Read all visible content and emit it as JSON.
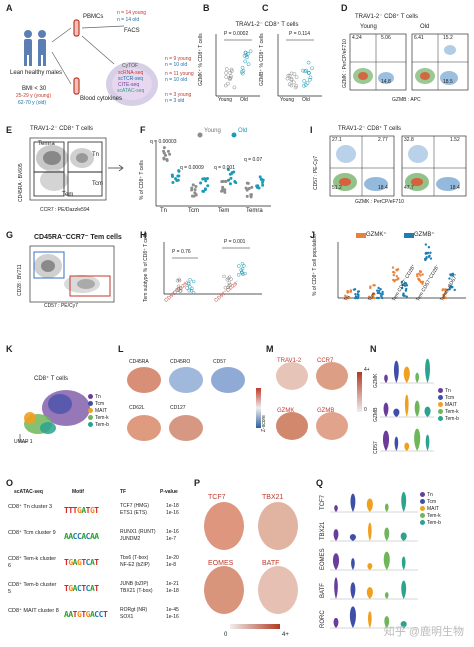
{
  "panels": {
    "A": {
      "letter": "A",
      "cohort_label": "Lean healthy males",
      "bmi": "BMI < 30",
      "age_young": "25-29 y (young)",
      "age_old": "62-70 y (old)",
      "pbmcs": "PBMCs",
      "pbmc_n_young": "n = 14 young",
      "pbmc_n_old": "n = 14 old",
      "facs": "FACS",
      "blood_cytokines": "Blood cytokines",
      "assays": [
        "CyTOF",
        "scRNA-seq",
        "scTCR-seq",
        "CITE-seq",
        "scATAC-seq"
      ],
      "right_counts": [
        "n = 9 young",
        "n = 10 old",
        "n = 11 young",
        "n = 10 old",
        "n = 3 young",
        "n = 3 old"
      ]
    },
    "B": {
      "letter": "B",
      "title": "TRAV1-2⁻ CD8⁺ T cells",
      "pval": "P = 0.0002",
      "ylabel": "GZMK⁺ % CD8⁺ T cells",
      "groups": [
        "Young",
        "Old"
      ],
      "yticks": [
        "0",
        "10",
        "20",
        "30"
      ]
    },
    "C": {
      "letter": "C",
      "pval": "P = 0.114",
      "ylabel": "GZMB⁺ % CD8⁺ T cells",
      "yticks": [
        "0",
        "20",
        "40"
      ]
    },
    "D": {
      "letter": "D",
      "title": "TRAV1-2⁻ CD8⁺ T cells",
      "young": "Young",
      "old": "Old",
      "xlabel": "GZMB : APC",
      "ylabel": "GZMK : PerCP/eF710",
      "q_young": [
        "4.24",
        "5.06",
        "14.8"
      ],
      "q_old": [
        "6.41",
        "15.2",
        "18.5"
      ]
    },
    "E": {
      "letter": "E",
      "title": "TRAV1-2⁻ CD8⁺ T cells",
      "gates": [
        "Temra",
        "Tn",
        "Tcm",
        "Tem"
      ],
      "xlabel": "CCR7 : PE/Dazzle594",
      "ylabel": "CD45RA : BV605"
    },
    "F": {
      "letter": "F",
      "legend": [
        "Young",
        "Old"
      ],
      "ylabel": "% of CD8⁺ T cells",
      "groups": [
        "Tn",
        "Tcm",
        "Tem",
        "Temra"
      ],
      "qvals": [
        "q = 0.00003",
        "q = 0.0009",
        "q = 0.001",
        "q = 0.07"
      ],
      "yticks": [
        "0",
        "20",
        "40",
        "60"
      ]
    },
    "G": {
      "letter": "G",
      "title": "CD45RA⁻CCR7⁻ Tem cells",
      "xlabel": "CD57 : PE/Cy7",
      "ylabel": "CD28 : BV711"
    },
    "H": {
      "letter": "H",
      "pvals": [
        "P = 0.76",
        "P = 0.001"
      ],
      "ylabel": "Tem subtype % of CD8⁺ T cells",
      "xlabels": [
        "CD57⁻CD28⁺",
        "CD57⁺CD28⁻"
      ],
      "yticks": [
        "0",
        "10",
        "20",
        "30"
      ]
    },
    "I": {
      "letter": "I",
      "title": "TRAV1-2⁻ CD8⁺ T cells",
      "q_left": [
        "27.1",
        "2.77",
        "51.2",
        "18.4"
      ],
      "q_right": [
        "32.8",
        "1.52",
        "47.7",
        "18.4"
      ],
      "xlabel": "GZMK : PerCP/eF710",
      "ylabel": "CD57 : PE-Cy7"
    },
    "J": {
      "letter": "J",
      "legend": [
        "GZMK⁺",
        "GZMB⁺"
      ],
      "ylabel": "% of CD8⁺ T cell population",
      "xlabels": [
        "Tn",
        "Tcm",
        "Tem CD57⁻CD28⁺",
        "Tem CD57⁺CD28⁻",
        "Temra CD57⁺"
      ],
      "yticks": [
        "0",
        "20",
        "40",
        "60",
        "80",
        "100"
      ],
      "medians_gzmk": [
        3,
        12,
        45,
        40,
        8
      ],
      "medians_gzmb": [
        2,
        5,
        15,
        85,
        30
      ]
    },
    "K": {
      "letter": "K",
      "title": "CD8⁺ T cells",
      "legend": [
        "Tn",
        "Tcm",
        "MAIT",
        "Tem-k",
        "Tem-b"
      ],
      "umap_x": "UMAP 1",
      "umap_y": "UMAP 2"
    },
    "L": {
      "letter": "L",
      "markers": [
        "CD45RA",
        "CD45RO",
        "CD57",
        "CD62L",
        "CD127"
      ],
      "scale_label": "Z-score"
    },
    "M": {
      "letter": "M",
      "markers": [
        "TRAV1-2",
        "CCR7",
        "GZMK",
        "GZMB"
      ],
      "scale_max": "4+",
      "scale_min": "0"
    },
    "N": {
      "letter": "N",
      "rows": [
        "GZMK",
        "GZMB",
        "CD57"
      ],
      "legend": [
        "Tn",
        "Tcm",
        "MAIT",
        "Tem-k",
        "Tem-b"
      ]
    },
    "O": {
      "letter": "O",
      "col_headers": [
        "scATAC-seq",
        "Motif",
        "TF",
        "P-value"
      ],
      "rows": [
        {
          "label": "CD8⁺ Tn cluster 3",
          "motif": "TTTGATGT",
          "tf": [
            "TCF7 (HMG)",
            "ETS1 (ETS)"
          ],
          "p": [
            "1e-18",
            "1e-16"
          ]
        },
        {
          "label": "CD8⁺ Tcm cluster 9",
          "motif": "AACCACAA",
          "tf": [
            "RUNX1 (RUNT)",
            "JUNDM2"
          ],
          "p": [
            "1e-16",
            "1e-7"
          ]
        },
        {
          "label": "CD8⁺ Tem-k cluster 6",
          "motif": "TGAGTCAT",
          "tf": [
            "Tbx6 (T-box)",
            "NF-E2 (bZIP)"
          ],
          "p": [
            "1e-20",
            "1e-8"
          ]
        },
        {
          "label": "CD8⁺ Tem-b cluster 5",
          "motif": "TGACTCAT",
          "tf": [
            "JUNB (bZIP)",
            "TBX21 (T-box)"
          ],
          "p": [
            "1e-21",
            "1e-18"
          ]
        },
        {
          "label": "CD8⁺ MAIT cluster 8",
          "motif": "AATGTGACCT",
          "tf": [
            "RORgt (NR)",
            "SOX1"
          ],
          "p": [
            "1e-45",
            "1e-16"
          ]
        }
      ]
    },
    "P": {
      "letter": "P",
      "genes": [
        "TCF7",
        "TBX21",
        "EOMES",
        "BATF"
      ],
      "scale_min": "0",
      "scale_max": "4+"
    },
    "Q": {
      "letter": "Q",
      "rows": [
        "TCF7",
        "TBX21",
        "EOMES",
        "BATF",
        "RORC"
      ],
      "legend": [
        "Tn",
        "Tcm",
        "MAIT",
        "Tem-k",
        "Tem-b"
      ]
    }
  },
  "watermark": "知乎 @鹿明生物",
  "colors": {
    "young": "#8c8c8c",
    "old": "#1b9bb6",
    "gzmk": "#e8823a",
    "gzmb": "#1f7db3",
    "tn": "#6a3d9a",
    "tcm": "#3f4fa8",
    "mait": "#f0a020",
    "temk": "#6fb65a",
    "temb": "#2aa38f",
    "red": "#c0392b",
    "blue": "#2c5f9e"
  }
}
